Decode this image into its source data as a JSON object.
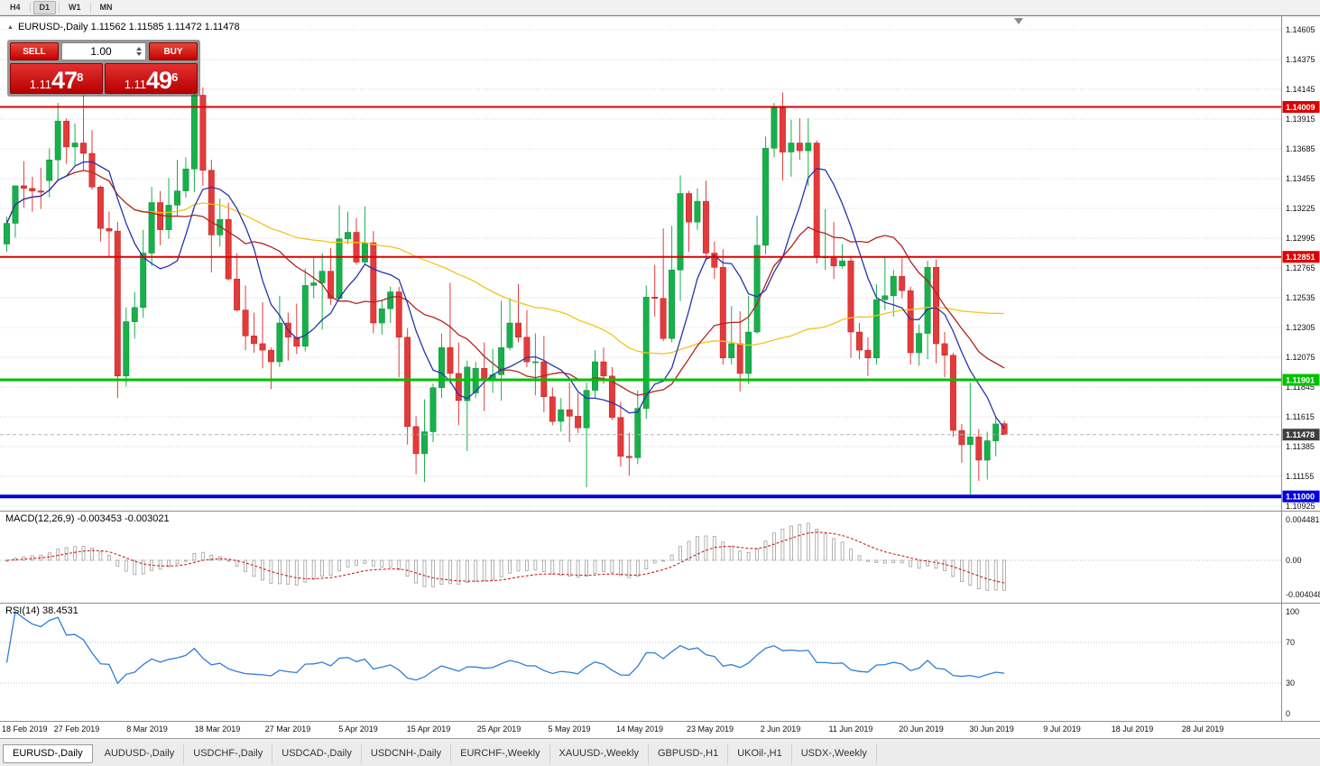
{
  "toolbar": {
    "timeframes": [
      "H4",
      "D1",
      "W1",
      "MN"
    ]
  },
  "chart": {
    "title": "EURUSD-,Daily 1.11562 1.11585 1.11472 1.11478",
    "symbol": "EURUSD-",
    "period": "Daily"
  },
  "one_click": {
    "sell_label": "SELL",
    "buy_label": "BUY",
    "volume": "1.00",
    "sell_price": {
      "prefix": "1.11",
      "big": "47",
      "sup": "8"
    },
    "buy_price": {
      "prefix": "1.11",
      "big": "49",
      "sup": "6"
    }
  },
  "price_scale": [
    "1.14605",
    "1.14375",
    "1.14145",
    "1.13915",
    "1.13685",
    "1.13455",
    "1.13225",
    "1.12995",
    "1.12765",
    "1.12535",
    "1.12305",
    "1.12075",
    "1.11845",
    "1.11615",
    "1.11385",
    "1.11155",
    "1.10925"
  ],
  "hlines": [
    {
      "price": 1.14009,
      "label": "1.14009",
      "color": "#dd0000",
      "width": 2
    },
    {
      "price": 1.12851,
      "label": "1.12851",
      "color": "#dd0000",
      "width": 2
    },
    {
      "price": 1.11901,
      "label": "1.11901",
      "color": "#00c000",
      "width": 3
    },
    {
      "price": 1.11,
      "label": "1.11000",
      "color": "#0000dd",
      "width": 4
    }
  ],
  "bid": {
    "price": 1.11478,
    "label": "1.11478",
    "color": "#3f3f3f"
  },
  "macd": {
    "label": "MACD(12,26,9) -0.003453 -0.003021",
    "value": -0.003453,
    "signal_value": -0.003021,
    "scale_labels": [
      "0.004481",
      "0.00",
      "-0.004048"
    ]
  },
  "rsi": {
    "label": "RSI(14) 38.4531",
    "value": 38.4531,
    "scale_labels": [
      "100",
      "70",
      "30",
      "0"
    ],
    "levels": [
      70,
      30
    ]
  },
  "dates": [
    "18 Feb 2019",
    "27 Feb 2019",
    "8 Mar 2019",
    "18 Mar 2019",
    "27 Mar 2019",
    "5 Apr 2019",
    "15 Apr 2019",
    "25 Apr 2019",
    "5 May 2019",
    "14 May 2019",
    "23 May 2019",
    "2 Jun 2019",
    "11 Jun 2019",
    "20 Jun 2019",
    "30 Jun 2019",
    "9 Jul 2019",
    "18 Jul 2019",
    "28 Jul 2019"
  ],
  "tabs": [
    "EURUSD-,Daily",
    "AUDUSD-,Daily",
    "USDCHF-,Daily",
    "USDCAD-,Daily",
    "USDCNH-,Daily",
    "EURCHF-,Weekly",
    "XAUUSD-,Weekly",
    "GBPUSD-,H1",
    "UKOil-,H1",
    "USDX-,Weekly"
  ],
  "chart_data": {
    "type": "candlestick",
    "title": "EURUSD- Daily",
    "ylim": [
      1.10925,
      1.14605
    ],
    "price_axis": {
      "top": 1.14605,
      "step": 0.0023,
      "ticks": 17
    },
    "overlays": {
      "sma_periods": [
        8,
        16,
        50
      ],
      "sma_colors": [
        "#2535ae",
        "#b22222",
        "#f0c41e"
      ]
    },
    "macd_panel": {
      "fast": 12,
      "slow": 26,
      "signal": 9,
      "ylim": [
        -0.004048,
        0.004481
      ]
    },
    "rsi_panel": {
      "period": 14,
      "ylim": [
        0,
        100
      ]
    },
    "ohlc": [
      [
        1.1295,
        1.1316,
        1.1289,
        1.1311
      ],
      [
        1.1311,
        1.134,
        1.13,
        1.134
      ],
      [
        1.134,
        1.1359,
        1.1323,
        1.1338
      ],
      [
        1.1338,
        1.1347,
        1.132,
        1.1336
      ],
      [
        1.1336,
        1.1354,
        1.1322,
        1.1335
      ],
      [
        1.1344,
        1.1369,
        1.1331,
        1.136
      ],
      [
        1.136,
        1.1404,
        1.1345,
        1.139
      ],
      [
        1.139,
        1.1392,
        1.1357,
        1.137
      ],
      [
        1.137,
        1.1388,
        1.1355,
        1.1373
      ],
      [
        1.1373,
        1.141,
        1.1352,
        1.1365
      ],
      [
        1.1365,
        1.1383,
        1.1337,
        1.1339
      ],
      [
        1.1339,
        1.134,
        1.1297,
        1.1307
      ],
      [
        1.1307,
        1.132,
        1.1285,
        1.1305
      ],
      [
        1.1305,
        1.1312,
        1.1176,
        1.1193
      ],
      [
        1.1193,
        1.1246,
        1.1185,
        1.1235
      ],
      [
        1.1235,
        1.1258,
        1.1222,
        1.1246
      ],
      [
        1.1246,
        1.1306,
        1.1238,
        1.1288
      ],
      [
        1.1288,
        1.1339,
        1.1278,
        1.1327
      ],
      [
        1.1327,
        1.1336,
        1.1294,
        1.1306
      ],
      [
        1.1306,
        1.1346,
        1.1299,
        1.1325
      ],
      [
        1.1325,
        1.136,
        1.1317,
        1.1336
      ],
      [
        1.1336,
        1.1362,
        1.1331,
        1.1353
      ],
      [
        1.1353,
        1.1418,
        1.1335,
        1.141
      ],
      [
        1.141,
        1.1416,
        1.134,
        1.1352
      ],
      [
        1.1352,
        1.136,
        1.1273,
        1.1302
      ],
      [
        1.1302,
        1.133,
        1.1293,
        1.1314
      ],
      [
        1.1314,
        1.1327,
        1.1267,
        1.1268
      ],
      [
        1.1268,
        1.1288,
        1.1243,
        1.1244
      ],
      [
        1.1244,
        1.1263,
        1.1213,
        1.1224
      ],
      [
        1.1224,
        1.1242,
        1.1211,
        1.1218
      ],
      [
        1.1218,
        1.125,
        1.1199,
        1.1213
      ],
      [
        1.1213,
        1.1215,
        1.1183,
        1.1204
      ],
      [
        1.1204,
        1.1255,
        1.12,
        1.1234
      ],
      [
        1.1234,
        1.1242,
        1.1205,
        1.1223
      ],
      [
        1.1223,
        1.1249,
        1.121,
        1.1216
      ],
      [
        1.1216,
        1.1276,
        1.1212,
        1.1263
      ],
      [
        1.1263,
        1.1285,
        1.1253,
        1.1265
      ],
      [
        1.1265,
        1.1288,
        1.1229,
        1.1274
      ],
      [
        1.1274,
        1.1292,
        1.1248,
        1.1253
      ],
      [
        1.1253,
        1.1325,
        1.1252,
        1.1299
      ],
      [
        1.1299,
        1.132,
        1.1295,
        1.1304
      ],
      [
        1.1304,
        1.1315,
        1.1279,
        1.1281
      ],
      [
        1.1281,
        1.1324,
        1.128,
        1.1296
      ],
      [
        1.1296,
        1.1305,
        1.1226,
        1.1234
      ],
      [
        1.1234,
        1.1252,
        1.1225,
        1.1245
      ],
      [
        1.1245,
        1.1262,
        1.1234,
        1.1258
      ],
      [
        1.1258,
        1.1262,
        1.1192,
        1.1223
      ],
      [
        1.1223,
        1.123,
        1.114,
        1.1154
      ],
      [
        1.1154,
        1.1162,
        1.1117,
        1.1133
      ],
      [
        1.1133,
        1.1175,
        1.1111,
        1.115
      ],
      [
        1.115,
        1.1187,
        1.1142,
        1.1184
      ],
      [
        1.1184,
        1.1226,
        1.1176,
        1.1215
      ],
      [
        1.1215,
        1.1265,
        1.1187,
        1.1195
      ],
      [
        1.1195,
        1.1219,
        1.1155,
        1.1174
      ],
      [
        1.1174,
        1.1205,
        1.1135,
        1.12
      ],
      [
        1.118,
        1.1204,
        1.1176,
        1.1199
      ],
      [
        1.1199,
        1.1219,
        1.1166,
        1.119
      ],
      [
        1.119,
        1.1214,
        1.118,
        1.1194
      ],
      [
        1.1194,
        1.1251,
        1.1174,
        1.1215
      ],
      [
        1.1215,
        1.1253,
        1.1213,
        1.1234
      ],
      [
        1.1234,
        1.1264,
        1.1219,
        1.1223
      ],
      [
        1.1223,
        1.1244,
        1.12,
        1.1204
      ],
      [
        1.1204,
        1.1226,
        1.1178,
        1.1204
      ],
      [
        1.1204,
        1.1224,
        1.1165,
        1.1177
      ],
      [
        1.1177,
        1.1184,
        1.1155,
        1.1158
      ],
      [
        1.1158,
        1.1176,
        1.115,
        1.1167
      ],
      [
        1.1167,
        1.1188,
        1.1142,
        1.1162
      ],
      [
        1.1162,
        1.118,
        1.1149,
        1.1153
      ],
      [
        1.1153,
        1.1188,
        1.1107,
        1.1182
      ],
      [
        1.1182,
        1.1213,
        1.1176,
        1.1204
      ],
      [
        1.1204,
        1.1215,
        1.1187,
        1.1193
      ],
      [
        1.1193,
        1.12,
        1.1159,
        1.1161
      ],
      [
        1.1161,
        1.1173,
        1.1123,
        1.1131
      ],
      [
        1.1131,
        1.1149,
        1.1116,
        1.113
      ],
      [
        1.113,
        1.1182,
        1.1125,
        1.1168
      ],
      [
        1.1168,
        1.1263,
        1.116,
        1.1254
      ],
      [
        1.1254,
        1.1279,
        1.1239,
        1.1253
      ],
      [
        1.1253,
        1.1307,
        1.122,
        1.1222
      ],
      [
        1.1222,
        1.1309,
        1.1219,
        1.1275
      ],
      [
        1.1275,
        1.1348,
        1.1251,
        1.1334
      ],
      [
        1.1334,
        1.1336,
        1.1289,
        1.1312
      ],
      [
        1.1312,
        1.1338,
        1.1306,
        1.1328
      ],
      [
        1.1328,
        1.1344,
        1.1282,
        1.1288
      ],
      [
        1.1288,
        1.1297,
        1.1268,
        1.1277
      ],
      [
        1.1277,
        1.1291,
        1.1202,
        1.1207
      ],
      [
        1.1207,
        1.1247,
        1.1202,
        1.1218
      ],
      [
        1.1218,
        1.1243,
        1.1181,
        1.1195
      ],
      [
        1.1195,
        1.1255,
        1.1187,
        1.1227
      ],
      [
        1.1227,
        1.1317,
        1.1226,
        1.1294
      ],
      [
        1.1294,
        1.1378,
        1.1287,
        1.1369
      ],
      [
        1.1369,
        1.1404,
        1.1362,
        1.14
      ],
      [
        1.14,
        1.1412,
        1.1344,
        1.1366
      ],
      [
        1.1366,
        1.1391,
        1.1347,
        1.1373
      ],
      [
        1.1373,
        1.1392,
        1.136,
        1.1367
      ],
      [
        1.1367,
        1.1392,
        1.134,
        1.1373
      ],
      [
        1.1373,
        1.1375,
        1.128,
        1.1285
      ],
      [
        1.1285,
        1.1322,
        1.1275,
        1.1285
      ],
      [
        1.1285,
        1.1312,
        1.1268,
        1.1278
      ],
      [
        1.1278,
        1.1295,
        1.1276,
        1.1282
      ],
      [
        1.1282,
        1.1286,
        1.1207,
        1.1227
      ],
      [
        1.1227,
        1.1234,
        1.1206,
        1.1213
      ],
      [
        1.1213,
        1.1223,
        1.1193,
        1.1207
      ],
      [
        1.1207,
        1.1264,
        1.1202,
        1.1252
      ],
      [
        1.1252,
        1.1285,
        1.1244,
        1.1255
      ],
      [
        1.1255,
        1.1275,
        1.1239,
        1.127
      ],
      [
        1.127,
        1.1284,
        1.1253,
        1.1259
      ],
      [
        1.1259,
        1.1262,
        1.1202,
        1.1211
      ],
      [
        1.1211,
        1.1233,
        1.1201,
        1.1226
      ],
      [
        1.1226,
        1.1282,
        1.1206,
        1.1277
      ],
      [
        1.1277,
        1.1283,
        1.1203,
        1.1218
      ],
      [
        1.1218,
        1.1227,
        1.1192,
        1.1209
      ],
      [
        1.1209,
        1.1211,
        1.1146,
        1.1151
      ],
      [
        1.1151,
        1.1156,
        1.1126,
        1.114
      ],
      [
        1.114,
        1.1188,
        1.1101,
        1.1146
      ],
      [
        1.1146,
        1.1152,
        1.1112,
        1.1128
      ],
      [
        1.1128,
        1.115,
        1.1113,
        1.1143
      ],
      [
        1.1143,
        1.1162,
        1.1131,
        1.1156
      ],
      [
        1.11562,
        1.11585,
        1.11472,
        1.11478
      ]
    ]
  }
}
